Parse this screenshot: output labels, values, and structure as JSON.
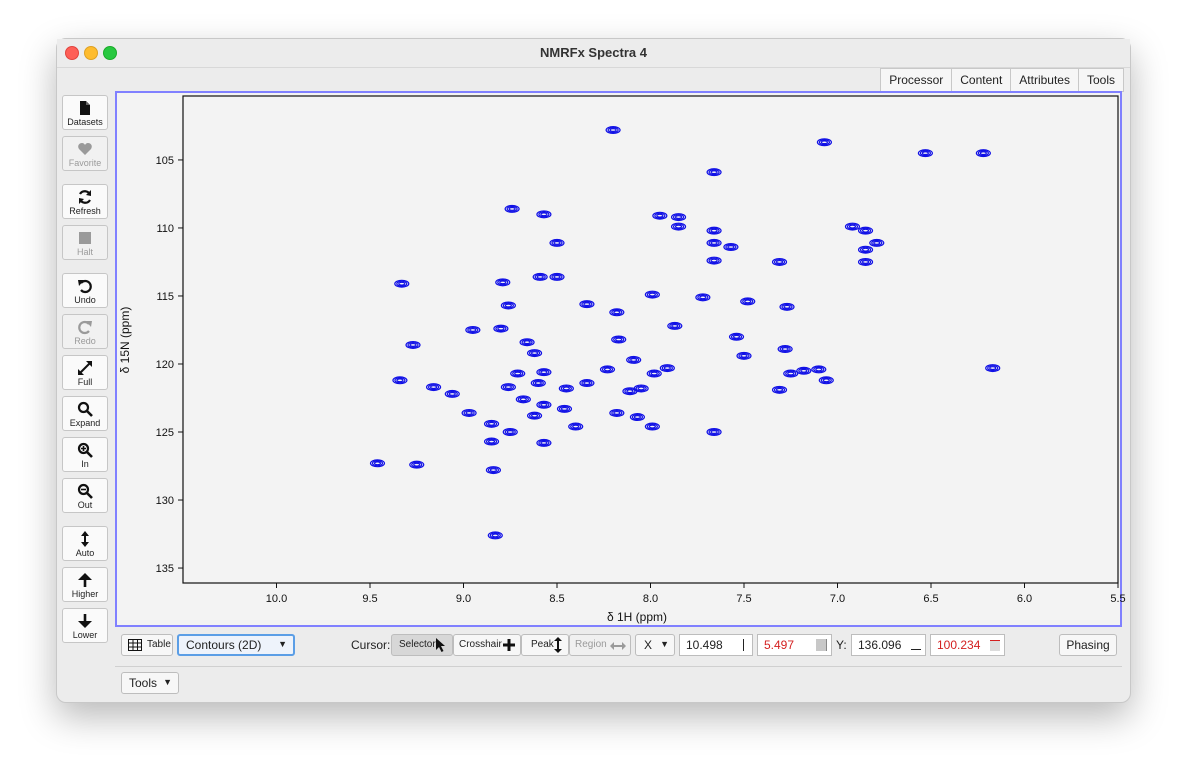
{
  "window": {
    "title": "NMRFx Spectra 4"
  },
  "tabs": [
    "Processor",
    "Content",
    "Attributes",
    "Tools"
  ],
  "toolbar": [
    {
      "label": "Datasets",
      "icon": "file-icon",
      "enabled": true
    },
    {
      "label": "Favorite",
      "icon": "heart-icon",
      "enabled": false
    },
    {
      "label": "Refresh",
      "icon": "refresh-icon",
      "enabled": true
    },
    {
      "label": "Halt",
      "icon": "stop-icon",
      "enabled": false
    },
    {
      "label": "Undo",
      "icon": "undo-icon",
      "enabled": true
    },
    {
      "label": "Redo",
      "icon": "redo-icon",
      "enabled": false
    },
    {
      "label": "Full",
      "icon": "full-icon",
      "enabled": true
    },
    {
      "label": "Expand",
      "icon": "expand-icon",
      "enabled": true
    },
    {
      "label": "In",
      "icon": "zoom-in-icon",
      "enabled": true
    },
    {
      "label": "Out",
      "icon": "zoom-out-icon",
      "enabled": true
    },
    {
      "label": "Auto",
      "icon": "auto-icon",
      "enabled": true
    },
    {
      "label": "Higher",
      "icon": "arrow-up-icon",
      "enabled": true
    },
    {
      "label": "Lower",
      "icon": "arrow-down-icon",
      "enabled": true
    }
  ],
  "bottom": {
    "table_label": "Table",
    "mode_value": "Contours (2D)",
    "cursor_label": "Cursor:",
    "cursor_modes": [
      {
        "label": "Selector",
        "active": true,
        "enabled": true
      },
      {
        "label": "Crosshair",
        "active": false,
        "enabled": true
      },
      {
        "label": "Peak",
        "active": false,
        "enabled": true
      },
      {
        "label": "Region",
        "active": false,
        "enabled": false
      }
    ],
    "axis_select": "X",
    "x_value_1": "10.498",
    "x_value_2": "5.497",
    "y_label": "Y:",
    "y_value_1": "136.096",
    "y_value_2": "100.234",
    "phasing_label": "Phasing",
    "tools_label": "Tools"
  },
  "colors": {
    "contour": "#1010e6",
    "frame": "#8080ff",
    "cursor_red": "#d42020"
  },
  "chart_data": {
    "type": "scatter",
    "xlabel": "δ 1H (ppm)",
    "ylabel": "δ 15N (ppm)",
    "x_range": [
      10.5,
      5.5
    ],
    "y_range": [
      100.3,
      136.1
    ],
    "x_ticks": [
      "10.0",
      "9.5",
      "9.0",
      "8.5",
      "8.0",
      "7.5",
      "7.0",
      "6.5",
      "6.0",
      "5.5"
    ],
    "y_ticks": [
      "105",
      "110",
      "115",
      "120",
      "125",
      "130",
      "135"
    ],
    "grid": false,
    "points": [
      [
        8.2,
        102.8
      ],
      [
        7.07,
        103.7
      ],
      [
        6.53,
        104.5
      ],
      [
        6.22,
        104.5
      ],
      [
        7.66,
        105.9
      ],
      [
        8.74,
        108.6
      ],
      [
        8.57,
        109.0
      ],
      [
        7.95,
        109.1
      ],
      [
        7.85,
        109.2
      ],
      [
        7.85,
        109.9
      ],
      [
        7.66,
        110.2
      ],
      [
        6.92,
        109.9
      ],
      [
        6.85,
        110.2
      ],
      [
        8.5,
        111.1
      ],
      [
        7.66,
        111.1
      ],
      [
        7.57,
        111.4
      ],
      [
        6.79,
        111.1
      ],
      [
        6.85,
        111.6
      ],
      [
        7.66,
        112.4
      ],
      [
        7.31,
        112.5
      ],
      [
        6.85,
        112.5
      ],
      [
        8.59,
        113.6
      ],
      [
        8.5,
        113.6
      ],
      [
        9.33,
        114.1
      ],
      [
        8.79,
        114.0
      ],
      [
        7.99,
        114.9
      ],
      [
        7.72,
        115.1
      ],
      [
        7.48,
        115.4
      ],
      [
        8.34,
        115.6
      ],
      [
        8.76,
        115.7
      ],
      [
        7.27,
        115.8
      ],
      [
        8.18,
        116.2
      ],
      [
        8.95,
        117.5
      ],
      [
        8.8,
        117.4
      ],
      [
        7.87,
        117.2
      ],
      [
        7.54,
        118.0
      ],
      [
        8.66,
        118.4
      ],
      [
        8.17,
        118.2
      ],
      [
        9.27,
        118.6
      ],
      [
        8.62,
        119.2
      ],
      [
        7.28,
        118.9
      ],
      [
        7.5,
        119.4
      ],
      [
        8.09,
        119.7
      ],
      [
        7.91,
        120.3
      ],
      [
        8.23,
        120.4
      ],
      [
        8.57,
        120.6
      ],
      [
        8.71,
        120.7
      ],
      [
        7.98,
        120.7
      ],
      [
        7.18,
        120.5
      ],
      [
        7.1,
        120.4
      ],
      [
        6.17,
        120.3
      ],
      [
        7.25,
        120.7
      ],
      [
        9.34,
        121.2
      ],
      [
        7.06,
        121.2
      ],
      [
        9.16,
        121.7
      ],
      [
        8.76,
        121.7
      ],
      [
        8.6,
        121.4
      ],
      [
        8.34,
        121.4
      ],
      [
        8.45,
        121.8
      ],
      [
        8.05,
        121.8
      ],
      [
        8.11,
        122.0
      ],
      [
        9.06,
        122.2
      ],
      [
        7.31,
        121.9
      ],
      [
        8.68,
        122.6
      ],
      [
        8.57,
        123.0
      ],
      [
        8.46,
        123.3
      ],
      [
        8.97,
        123.6
      ],
      [
        8.18,
        123.6
      ],
      [
        8.62,
        123.8
      ],
      [
        8.07,
        123.9
      ],
      [
        8.85,
        124.4
      ],
      [
        7.99,
        124.6
      ],
      [
        8.4,
        124.6
      ],
      [
        8.75,
        125.0
      ],
      [
        7.66,
        125.0
      ],
      [
        8.85,
        125.7
      ],
      [
        8.57,
        125.8
      ],
      [
        9.46,
        127.3
      ],
      [
        9.25,
        127.4
      ],
      [
        8.84,
        127.8
      ],
      [
        8.83,
        132.6
      ]
    ]
  }
}
